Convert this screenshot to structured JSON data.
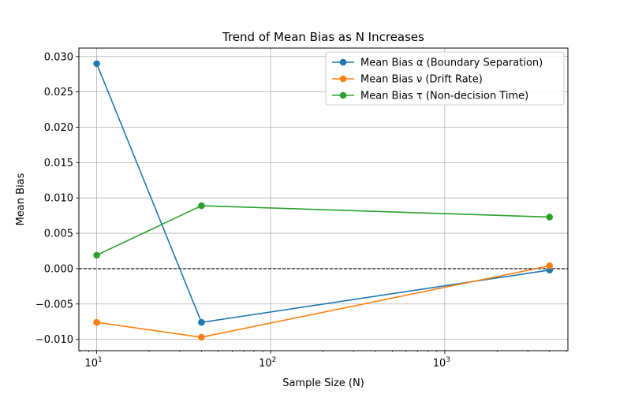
{
  "chart_data": {
    "type": "line",
    "title": "Trend of Mean Bias as N Increases",
    "xlabel": "Sample Size (N)",
    "ylabel": "Mean Bias",
    "x_scale": "log",
    "x": [
      10,
      40,
      4000
    ],
    "xlim": [
      7.9,
      5100
    ],
    "ylim": [
      -0.0116,
      0.0312
    ],
    "x_ticks": [
      {
        "value": 10,
        "base": "10",
        "exp": "1"
      },
      {
        "value": 100,
        "base": "10",
        "exp": "2"
      },
      {
        "value": 1000,
        "base": "10",
        "exp": "3"
      }
    ],
    "y_ticks": [
      -0.01,
      -0.005,
      0.0,
      0.005,
      0.01,
      0.015,
      0.02,
      0.025,
      0.03
    ],
    "y_tick_labels": [
      "−0.010",
      "−0.005",
      "0.000",
      "0.005",
      "0.010",
      "0.015",
      "0.020",
      "0.025",
      "0.030"
    ],
    "reference_line": {
      "y": 0,
      "style": "dashed",
      "color": "#000000"
    },
    "grid": true,
    "legend_position": "top-right",
    "series": [
      {
        "name": "Mean Bias α (Boundary Separation)",
        "color": "#1f77b4",
        "values": [
          0.029,
          -0.0076,
          -0.0002
        ]
      },
      {
        "name": "Mean Bias ν (Drift Rate)",
        "color": "#ff7f0e",
        "values": [
          -0.0076,
          -0.0097,
          0.0004
        ]
      },
      {
        "name": "Mean Bias τ (Non-decision Time)",
        "color": "#2ca02c",
        "values": [
          0.0019,
          0.0089,
          0.0073
        ]
      }
    ]
  }
}
